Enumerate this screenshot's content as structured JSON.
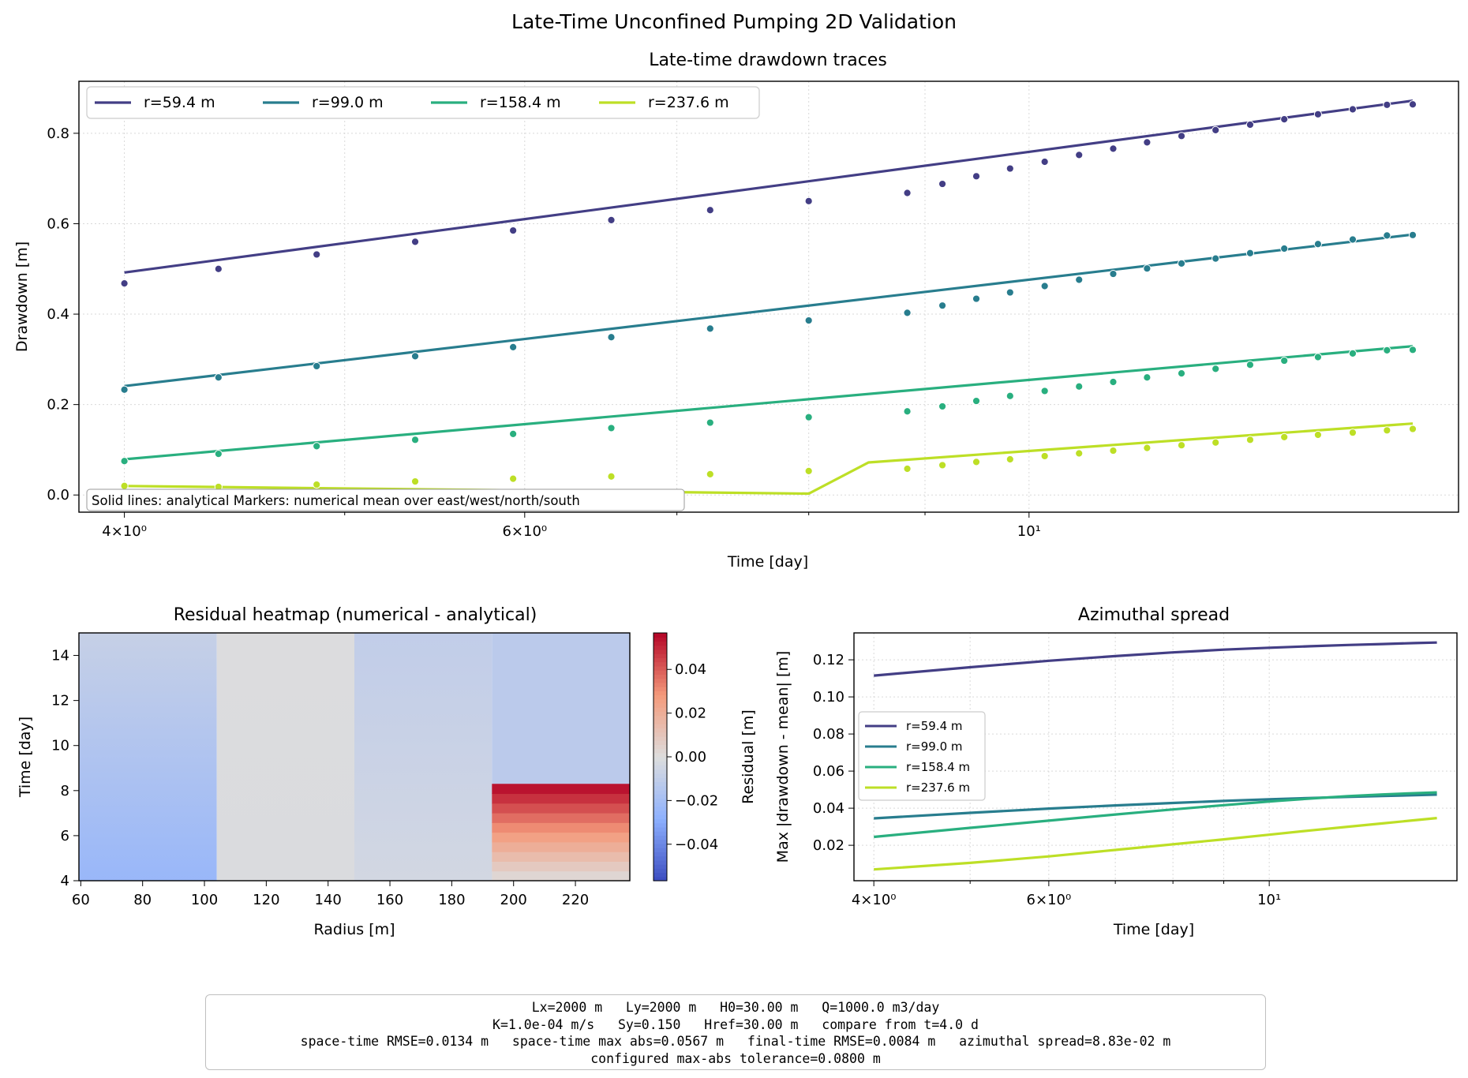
{
  "figure_title": "Late-Time Unconfined Pumping 2D Validation",
  "summary_lines": [
    "Lx=2000 m   Ly=2000 m   H0=30.00 m   Q=1000.0 m3/day",
    "K=1.0e-04 m/s   Sy=0.150   Href=30.00 m   compare from t=4.0 d",
    "space-time RMSE=0.0134 m   space-time max abs=0.0567 m   final-time RMSE=0.0084 m   azimuthal spread=8.83e-02 m",
    "configured max-abs tolerance=0.0800 m"
  ],
  "chart_data": [
    {
      "type": "line",
      "title": "Late-time drawdown traces",
      "xlabel": "Time [day]",
      "ylabel": "Drawdown [m]",
      "xscale": "log",
      "xlim": [
        3.82,
        15.45
      ],
      "ylim": [
        -0.038,
        0.915
      ],
      "grid": true,
      "legend_position": "upper-left",
      "x_tick_labels": [
        "4×10⁰",
        "6×10⁰",
        "10¹"
      ],
      "x_ticks": [
        4,
        6,
        10
      ],
      "y_ticks": [
        0.0,
        0.2,
        0.4,
        0.6,
        0.8
      ],
      "y_tick_labels": [
        "0.0",
        "0.2",
        "0.4",
        "0.6",
        "0.8"
      ],
      "annotation": "Solid lines: analytical   Markers: numerical mean over east/west/north/south",
      "series": [
        {
          "name": "r=59.4 m",
          "color": "#433e85",
          "line": {
            "x": [
              4.0,
              14.75
            ],
            "y": [
              0.492,
              0.872
            ]
          },
          "markers": {
            "x": [
              4.0,
              4.4,
              4.86,
              5.37,
              5.93,
              6.55,
              7.24,
              8.0,
              8.84,
              9.16,
              9.48,
              9.81,
              10.16,
              10.52,
              10.89,
              11.27,
              11.67,
              12.08,
              12.51,
              12.95,
              13.4,
              13.88,
              14.37,
              14.75
            ],
            "y": [
              0.468,
              0.5,
              0.532,
              0.56,
              0.585,
              0.608,
              0.63,
              0.65,
              0.668,
              0.688,
              0.705,
              0.722,
              0.737,
              0.752,
              0.766,
              0.78,
              0.794,
              0.807,
              0.819,
              0.831,
              0.842,
              0.853,
              0.863,
              0.864
            ]
          }
        },
        {
          "name": "r=99.0 m",
          "color": "#287d8e",
          "line": {
            "x": [
              4.0,
              14.75
            ],
            "y": [
              0.241,
              0.576
            ]
          },
          "markers": {
            "x": [
              4.0,
              4.4,
              4.86,
              5.37,
              5.93,
              6.55,
              7.24,
              8.0,
              8.84,
              9.16,
              9.48,
              9.81,
              10.16,
              10.52,
              10.89,
              11.27,
              11.67,
              12.08,
              12.51,
              12.95,
              13.4,
              13.88,
              14.37,
              14.75
            ],
            "y": [
              0.233,
              0.26,
              0.285,
              0.307,
              0.327,
              0.349,
              0.368,
              0.386,
              0.403,
              0.419,
              0.434,
              0.448,
              0.462,
              0.476,
              0.489,
              0.501,
              0.512,
              0.523,
              0.535,
              0.545,
              0.555,
              0.565,
              0.574,
              0.575
            ]
          }
        },
        {
          "name": "r=158.4 m",
          "color": "#29af7f",
          "line": {
            "x": [
              4.0,
              14.75
            ],
            "y": [
              0.079,
              0.329
            ]
          },
          "markers": {
            "x": [
              4.0,
              4.4,
              4.86,
              5.37,
              5.93,
              6.55,
              7.24,
              8.0,
              8.84,
              9.16,
              9.48,
              9.81,
              10.16,
              10.52,
              10.89,
              11.27,
              11.67,
              12.08,
              12.51,
              12.95,
              13.4,
              13.88,
              14.37,
              14.75
            ],
            "y": [
              0.075,
              0.091,
              0.108,
              0.122,
              0.135,
              0.148,
              0.16,
              0.172,
              0.185,
              0.196,
              0.208,
              0.219,
              0.23,
              0.24,
              0.25,
              0.26,
              0.269,
              0.279,
              0.288,
              0.297,
              0.305,
              0.313,
              0.32,
              0.321
            ]
          }
        },
        {
          "name": "r=237.6 m",
          "color": "#bddf26",
          "line": {
            "x": [
              4.0,
              8.0,
              8.5,
              14.75
            ],
            "y": [
              0.02,
              0.003,
              0.072,
              0.158
            ]
          },
          "markers": {
            "x": [
              4.0,
              4.4,
              4.86,
              5.37,
              5.93,
              6.55,
              7.24,
              8.0,
              8.84,
              9.16,
              9.48,
              9.81,
              10.16,
              10.52,
              10.89,
              11.27,
              11.67,
              12.08,
              12.51,
              12.95,
              13.4,
              13.88,
              14.37,
              14.75
            ],
            "y": [
              0.02,
              0.018,
              0.023,
              0.03,
              0.036,
              0.041,
              0.046,
              0.053,
              0.058,
              0.066,
              0.073,
              0.079,
              0.086,
              0.092,
              0.098,
              0.104,
              0.11,
              0.116,
              0.122,
              0.128,
              0.133,
              0.138,
              0.143,
              0.146
            ]
          }
        }
      ]
    },
    {
      "type": "heatmap",
      "title": "Residual heatmap (numerical - analytical)",
      "xlabel": "Radius [m]",
      "ylabel": "Time [day]",
      "xlim": [
        59.4,
        237.6
      ],
      "ylim": [
        4.0,
        15.0
      ],
      "x_ticks": [
        60,
        80,
        100,
        120,
        140,
        160,
        180,
        200,
        220
      ],
      "y_ticks": [
        4,
        6,
        8,
        10,
        12,
        14
      ],
      "colormap": "coolwarm",
      "colorbar_label": "Residual [m]",
      "colorbar_range": [
        -0.0567,
        0.0567
      ],
      "colorbar_ticks": [
        -0.04,
        -0.02,
        0.0,
        0.02,
        0.04
      ],
      "colorbar_tick_labels": [
        "−0.04",
        "−0.02",
        "0.00",
        "0.02",
        "0.04"
      ],
      "columns": [
        {
          "radius": 59.4,
          "x_range": [
            59.4,
            104.0
          ],
          "residual_bottom": -0.024,
          "residual_top": -0.008
        },
        {
          "radius": 158.4,
          "x_range": [
            104.0,
            148.5
          ],
          "residual_bottom": -0.001,
          "residual_top": -0.0005
        },
        {
          "radius": 99.0,
          "x_range": [
            148.5,
            193.0
          ],
          "residual_bottom": -0.004,
          "residual_top": -0.01
        },
        {
          "radius": 237.6,
          "x_range": [
            193.0,
            237.6
          ],
          "residual_bottom": -0.012,
          "residual_top": -0.012
        }
      ],
      "hot_block": {
        "x_range": [
          193.0,
          237.6
        ],
        "t_range": [
          4.0,
          8.3
        ],
        "residual_bottom": 0.0,
        "residual_top": 0.0567
      }
    },
    {
      "type": "line",
      "title": "Azimuthal spread",
      "xlabel": "Time [day]",
      "ylabel": "Max |drawdown - mean| [m]",
      "xscale": "log",
      "xlim": [
        3.82,
        15.45
      ],
      "ylim": [
        0.0009,
        0.1345
      ],
      "x_ticks": [
        4,
        6,
        10
      ],
      "x_tick_labels": [
        "4×10⁰",
        "6×10⁰",
        "10¹"
      ],
      "y_ticks": [
        0.02,
        0.04,
        0.06,
        0.08,
        0.1,
        0.12
      ],
      "y_tick_labels": [
        "0.02",
        "0.04",
        "0.06",
        "0.08",
        "0.10",
        "0.12"
      ],
      "grid": true,
      "legend_position": "center-left",
      "series": [
        {
          "name": "r=59.4 m",
          "color": "#433e85",
          "x": [
            4,
            5,
            6,
            7,
            8,
            9,
            10,
            11,
            12,
            13,
            14,
            14.75
          ],
          "y": [
            0.1115,
            0.116,
            0.1195,
            0.122,
            0.124,
            0.1255,
            0.1265,
            0.1273,
            0.128,
            0.1285,
            0.129,
            0.1293
          ]
        },
        {
          "name": "r=99.0 m",
          "color": "#287d8e",
          "x": [
            4,
            5,
            6,
            7,
            8,
            9,
            10,
            11,
            12,
            13,
            14,
            14.75
          ],
          "y": [
            0.0345,
            0.0375,
            0.0398,
            0.0415,
            0.0428,
            0.0439,
            0.0448,
            0.0455,
            0.0461,
            0.0466,
            0.047,
            0.0473
          ]
        },
        {
          "name": "r=158.4 m",
          "color": "#29af7f",
          "x": [
            4,
            5,
            6,
            7,
            8,
            9,
            10,
            11,
            12,
            13,
            14,
            14.75
          ],
          "y": [
            0.0245,
            0.0294,
            0.0333,
            0.0366,
            0.0393,
            0.0416,
            0.0436,
            0.0452,
            0.0465,
            0.0474,
            0.0481,
            0.0485
          ]
        },
        {
          "name": "r=237.6 m",
          "color": "#bddf26",
          "x": [
            4,
            5,
            6,
            7,
            8,
            9,
            10,
            11,
            12,
            13,
            14,
            14.75
          ],
          "y": [
            0.007,
            0.0105,
            0.014,
            0.0175,
            0.0205,
            0.0232,
            0.0257,
            0.028,
            0.03,
            0.0318,
            0.0335,
            0.0347
          ]
        }
      ]
    }
  ]
}
